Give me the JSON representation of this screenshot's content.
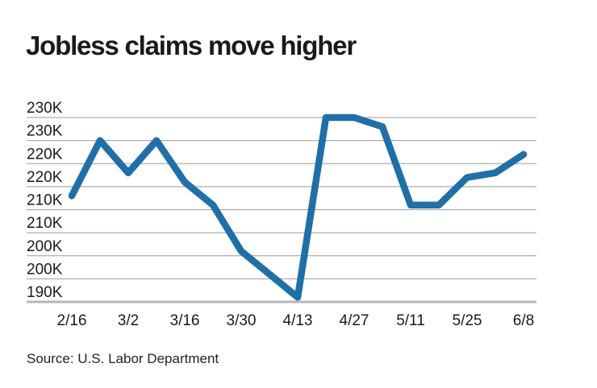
{
  "title": "Jobless claims move higher",
  "source": "Source: U.S. Labor Department",
  "colors": {
    "line": "#1f6fa8",
    "grid": "#999999",
    "axis": "#b5b5b5",
    "label_text": "#1a1a1a",
    "background": "#ffffff"
  },
  "chart_data": {
    "type": "line",
    "title": "Jobless claims move higher",
    "x": [
      "2/16",
      "2/23",
      "3/2",
      "3/9",
      "3/16",
      "3/23",
      "3/30",
      "4/6",
      "4/13",
      "4/20",
      "4/27",
      "5/4",
      "5/11",
      "5/18",
      "5/25",
      "6/1",
      "6/8"
    ],
    "values": [
      213,
      225,
      218,
      225,
      216,
      211,
      201,
      196,
      191,
      230,
      230,
      228,
      211,
      211,
      217,
      218,
      222
    ],
    "unit": "thousands of claims (K)",
    "x_tick_labels": [
      "2/16",
      "3/2",
      "3/16",
      "3/30",
      "4/13",
      "4/27",
      "5/11",
      "5/25",
      "6/8"
    ],
    "y_gridline_values": [
      230,
      225,
      220,
      215,
      210,
      205,
      200,
      195,
      190
    ],
    "y_tick_labels": [
      "230K",
      "230K",
      "220K",
      "220K",
      "210K",
      "210K",
      "200K",
      "200K",
      "190K"
    ],
    "ylim": [
      190,
      230
    ],
    "xlabel": "",
    "ylabel": "",
    "grid": true,
    "legend": false
  }
}
